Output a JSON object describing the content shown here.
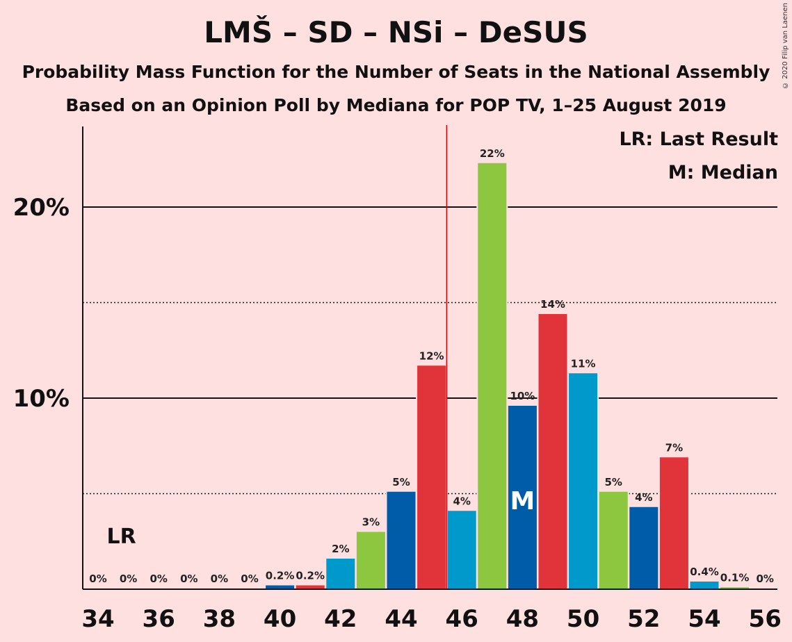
{
  "chart_data": {
    "type": "bar",
    "title": "LMŠ – SD – NSi – DeSUS",
    "subtitle_1": "Probability Mass Function for the Number of Seats in the National Assembly",
    "subtitle_2": "Based on an Opinion Poll by Mediana for POP TV, 1–25 August 2019",
    "copyright": "© 2020 Filip van Laenen",
    "x_categories": [
      34,
      35,
      36,
      37,
      38,
      39,
      40,
      41,
      42,
      43,
      44,
      45,
      46,
      47,
      48,
      49,
      50,
      51,
      52,
      53,
      54,
      55,
      56
    ],
    "values": [
      0,
      0,
      0,
      0,
      0,
      0,
      0.2,
      0.2,
      1.6,
      3.0,
      5.1,
      11.7,
      4.1,
      22.3,
      9.6,
      14.4,
      11.3,
      5.1,
      4.3,
      6.9,
      0.4,
      0.1,
      0
    ],
    "value_labels": [
      "0%",
      "0%",
      "0%",
      "0%",
      "0%",
      "0%",
      "0.2%",
      "0.2%",
      "2%",
      "3%",
      "5%",
      "12%",
      "4%",
      "22%",
      "10%",
      "14%",
      "11%",
      "5%",
      "4%",
      "7%",
      "0.4%",
      "0.1%",
      "0%"
    ],
    "bar_colors": [
      "#0099CC",
      "#E1343A",
      "#8DC63F",
      "#005BA9",
      "#0099CC",
      "#E1343A",
      "#005BA9",
      "#E1343A",
      "#0099CC",
      "#8DC63F",
      "#005BA9",
      "#E1343A",
      "#0099CC",
      "#8DC63F",
      "#005BA9",
      "#E1343A",
      "#0099CC",
      "#8DC63F",
      "#005BA9",
      "#E1343A",
      "#0099CC",
      "#8DC63F",
      "#005BA9"
    ],
    "x_tick_labels": [
      "34",
      "36",
      "38",
      "40",
      "42",
      "44",
      "46",
      "48",
      "50",
      "52",
      "54",
      "56"
    ],
    "y_tick_labels": [
      {
        "value": 10,
        "label": "10%"
      },
      {
        "value": 20,
        "label": "20%"
      }
    ],
    "gridlines_solid": [
      10,
      20
    ],
    "gridlines_dotted": [
      5,
      15
    ],
    "ylim": [
      0,
      24
    ],
    "last_result": {
      "seat": 35,
      "label": "LR"
    },
    "median": {
      "seat": 48,
      "label": "M"
    },
    "majority_line_after_seat": 45,
    "legend": {
      "last_result": "LR: Last Result",
      "median": "M: Median"
    }
  }
}
